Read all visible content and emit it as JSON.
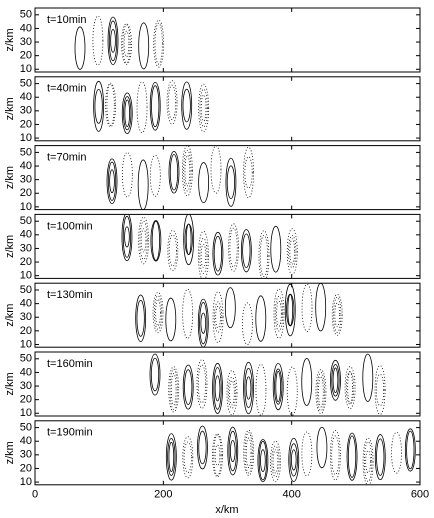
{
  "chart_data": {
    "type": "contour",
    "xlabel": "x/km",
    "xlim": [
      0,
      600
    ],
    "xticks": [
      0,
      200,
      400,
      600
    ],
    "panels": [
      {
        "annotation": "t=10min",
        "ylabel": "z/km",
        "ylim": [
          8,
          55
        ],
        "yticks": [
          10,
          20,
          30,
          40,
          50
        ]
      },
      {
        "annotation": "t=40min",
        "ylabel": "z/km",
        "ylim": [
          8,
          55
        ],
        "yticks": [
          10,
          20,
          30,
          40,
          50
        ]
      },
      {
        "annotation": "t=70min",
        "ylabel": "z/km",
        "ylim": [
          8,
          55
        ],
        "yticks": [
          10,
          20,
          30,
          40,
          50
        ]
      },
      {
        "annotation": "t=100min",
        "ylabel": "z/km",
        "ylim": [
          8,
          55
        ],
        "yticks": [
          10,
          20,
          30,
          40,
          50
        ]
      },
      {
        "annotation": "t=130min",
        "ylabel": "z/km",
        "ylim": [
          8,
          55
        ],
        "yticks": [
          10,
          20,
          30,
          40,
          50
        ]
      },
      {
        "annotation": "t=160min",
        "ylabel": "z/km",
        "ylim": [
          8,
          55
        ],
        "yticks": [
          10,
          20,
          30,
          40,
          50
        ]
      },
      {
        "annotation": "t=190min",
        "ylabel": "z/km",
        "ylim": [
          8,
          55
        ],
        "yticks": [
          10,
          20,
          30,
          40,
          50
        ]
      }
    ]
  }
}
